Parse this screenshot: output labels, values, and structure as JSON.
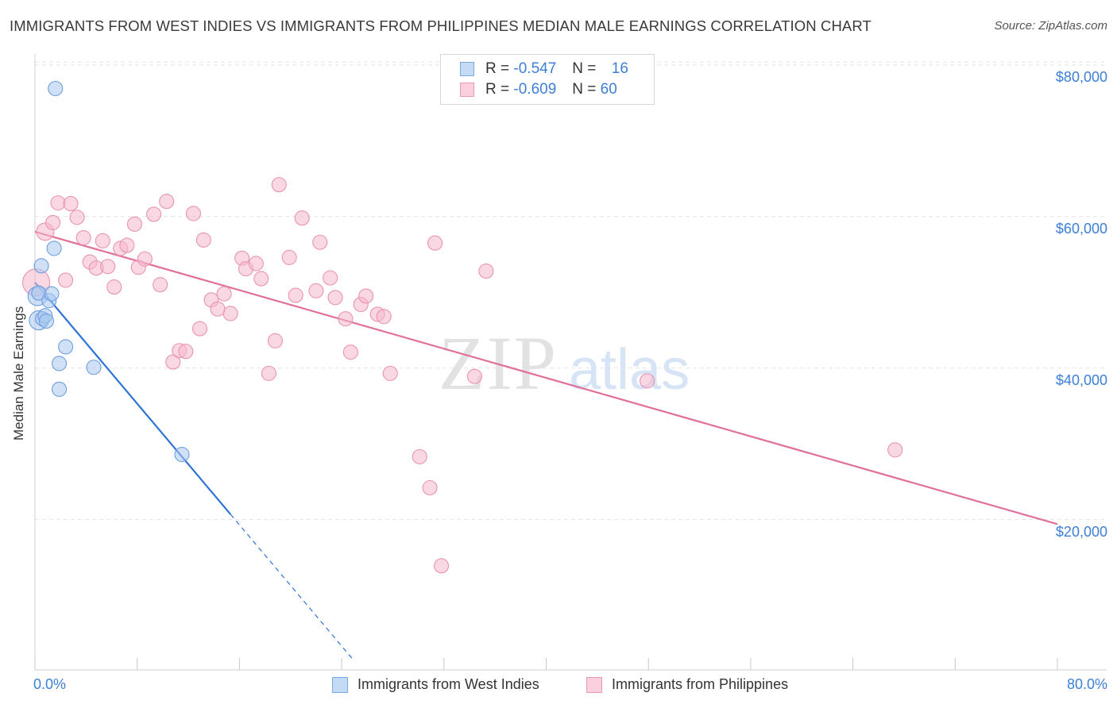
{
  "title": "IMMIGRANTS FROM WEST INDIES VS IMMIGRANTS FROM PHILIPPINES MEDIAN MALE EARNINGS CORRELATION CHART",
  "source": "Source: ZipAtlas.com",
  "watermark": {
    "zip": "ZIP",
    "atlas": "atlas"
  },
  "legend": {
    "rows": [
      {
        "r_label": "R =",
        "r_value": "-0.547",
        "n_label": "N =",
        "n_value": "16"
      },
      {
        "r_label": "R =",
        "r_value": "-0.609",
        "n_label": "N =",
        "n_value": "60"
      }
    ]
  },
  "colors": {
    "west_indies_fill": "#a9c8f0",
    "west_indies_line": "#2e74d4",
    "philippines_fill": "#f6b8cc",
    "philippines_line": "#e0709a",
    "tick_text": "#3d7fd6",
    "grid": "#e3e3e3"
  },
  "chart_data": {
    "type": "scatter",
    "title": "IMMIGRANTS FROM WEST INDIES VS IMMIGRANTS FROM PHILIPPINES MEDIAN MALE EARNINGS CORRELATION CHART",
    "xlabel": "",
    "ylabel": "Median Male Earnings",
    "xlim": [
      0,
      80
    ],
    "ylim": [
      0,
      82000
    ],
    "x_tick_labels": [
      "0.0%",
      "80.0%"
    ],
    "y_ticks": [
      20000,
      40000,
      60000,
      80000
    ],
    "y_tick_labels": [
      "$20,000",
      "$40,000",
      "$60,000",
      "$80,000"
    ],
    "grid": true,
    "legend_position": "bottom",
    "series": [
      {
        "name": "Immigrants from West Indies",
        "points": [
          [
            0.2,
            49500,
            12
          ],
          [
            0.3,
            46300,
            12
          ],
          [
            0.3,
            49900,
            9
          ],
          [
            0.5,
            53500,
            9
          ],
          [
            0.6,
            46500,
            9
          ],
          [
            0.8,
            46900,
            9
          ],
          [
            0.9,
            46200,
            9
          ],
          [
            1.1,
            48900,
            9
          ],
          [
            1.3,
            49800,
            9
          ],
          [
            1.5,
            55800,
            9
          ],
          [
            1.6,
            76900,
            9
          ],
          [
            1.9,
            40600,
            9
          ],
          [
            1.9,
            37200,
            9
          ],
          [
            2.4,
            42800,
            9
          ],
          [
            4.6,
            40100,
            9
          ],
          [
            11.5,
            28600,
            9
          ]
        ],
        "trend": {
          "x0": 0,
          "y0": 51300,
          "x1": 15.3,
          "y1": 20700,
          "dash_x1": 25,
          "dash_y1": 1300
        }
      },
      {
        "name": "Immigrants from Philippines",
        "points": [
          [
            0.1,
            51300,
            17
          ],
          [
            0.8,
            58000,
            11
          ],
          [
            1.4,
            59200,
            9
          ],
          [
            1.8,
            61800,
            9
          ],
          [
            2.4,
            51600,
            9
          ],
          [
            2.8,
            61700,
            9
          ],
          [
            3.3,
            59900,
            9
          ],
          [
            3.8,
            57200,
            9
          ],
          [
            4.3,
            54000,
            9
          ],
          [
            4.8,
            53200,
            9
          ],
          [
            5.3,
            56800,
            9
          ],
          [
            5.7,
            53400,
            9
          ],
          [
            6.2,
            50700,
            9
          ],
          [
            6.7,
            55800,
            9
          ],
          [
            7.2,
            56200,
            9
          ],
          [
            7.8,
            59000,
            9
          ],
          [
            8.1,
            53300,
            9
          ],
          [
            8.6,
            54400,
            9
          ],
          [
            9.3,
            60300,
            9
          ],
          [
            9.8,
            51000,
            9
          ],
          [
            10.3,
            62000,
            9
          ],
          [
            10.8,
            40800,
            9
          ],
          [
            11.3,
            42300,
            9
          ],
          [
            11.8,
            42200,
            9
          ],
          [
            12.4,
            60400,
            9
          ],
          [
            12.9,
            45200,
            9
          ],
          [
            13.2,
            56900,
            9
          ],
          [
            13.8,
            49000,
            9
          ],
          [
            14.3,
            47800,
            9
          ],
          [
            14.8,
            49800,
            9
          ],
          [
            15.3,
            47200,
            9
          ],
          [
            16.2,
            54500,
            9
          ],
          [
            16.5,
            53100,
            9
          ],
          [
            17.3,
            53800,
            9
          ],
          [
            17.7,
            51800,
            9
          ],
          [
            18.3,
            39300,
            9
          ],
          [
            18.8,
            43600,
            9
          ],
          [
            19.1,
            64200,
            9
          ],
          [
            19.9,
            54600,
            9
          ],
          [
            20.4,
            49600,
            9
          ],
          [
            20.9,
            59800,
            9
          ],
          [
            22.0,
            50200,
            9
          ],
          [
            22.3,
            56600,
            9
          ],
          [
            23.1,
            51900,
            9
          ],
          [
            23.5,
            49300,
            9
          ],
          [
            24.3,
            46500,
            9
          ],
          [
            24.7,
            42100,
            9
          ],
          [
            25.5,
            48400,
            9
          ],
          [
            25.9,
            49500,
            9
          ],
          [
            26.8,
            47100,
            9
          ],
          [
            27.3,
            46800,
            9
          ],
          [
            27.8,
            39300,
            9
          ],
          [
            30.1,
            28300,
            9
          ],
          [
            30.9,
            24200,
            9
          ],
          [
            31.3,
            56500,
            9
          ],
          [
            31.8,
            13900,
            9
          ],
          [
            34.4,
            38900,
            9
          ],
          [
            35.3,
            52800,
            9
          ],
          [
            47.9,
            38300,
            9
          ],
          [
            67.3,
            29200,
            9
          ]
        ],
        "trend": {
          "x0": 0,
          "y0": 58000,
          "x1": 80,
          "y1": 19400
        }
      }
    ]
  }
}
